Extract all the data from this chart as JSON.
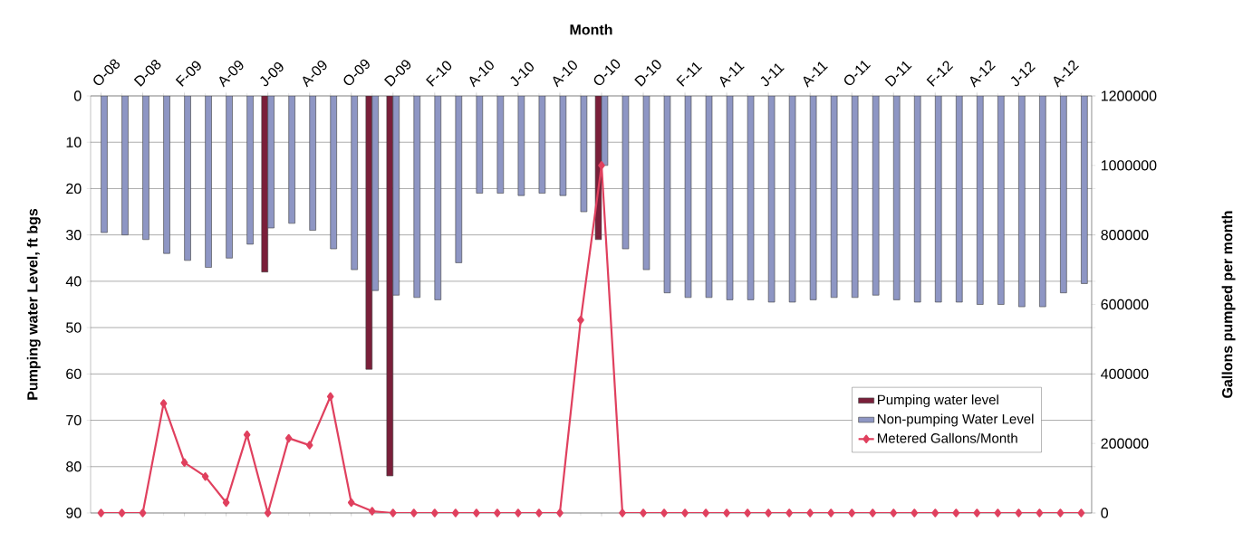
{
  "chart_data": {
    "type": "bar",
    "xlabel": "Month",
    "ylabel": "Pumping water Level, ft bgs",
    "y2label": "Gallons pumped per month",
    "categories": [
      "O-08",
      null,
      "D-08",
      null,
      "F-09",
      null,
      "A-09",
      null,
      "J-09",
      null,
      "A-09",
      null,
      "O-09",
      null,
      "D-09",
      null,
      "F-10",
      null,
      "A-10",
      null,
      "J-10",
      null,
      "A-10",
      null,
      "O-10",
      null,
      "D-10",
      null,
      "F-11",
      null,
      "A-11",
      null,
      "J-11",
      null,
      "A-11",
      null,
      "O-11",
      null,
      "D-11",
      null,
      "F-12",
      null,
      "A-12",
      null,
      "J-12",
      null,
      "A-12",
      null
    ],
    "series": [
      {
        "name": "Pumping water level",
        "color": "#7a1f3a",
        "values": [
          null,
          null,
          null,
          null,
          null,
          null,
          null,
          null,
          38,
          null,
          null,
          null,
          null,
          59,
          82,
          null,
          null,
          null,
          null,
          null,
          null,
          null,
          null,
          null,
          31,
          null,
          null,
          null,
          null,
          null,
          null,
          null,
          null,
          null,
          null,
          null,
          null,
          null,
          null,
          null,
          null,
          null,
          null,
          null,
          null,
          null,
          null,
          null
        ]
      },
      {
        "name": "Non-pumping Water Level",
        "color": "#8e96c4",
        "values": [
          29.5,
          30,
          31,
          34,
          35.5,
          37,
          35,
          32,
          28.5,
          27.5,
          29,
          33,
          37.5,
          42,
          43,
          43.5,
          44,
          36,
          21,
          21,
          21.5,
          21,
          21.5,
          25,
          15,
          33,
          37.5,
          42.5,
          43.5,
          43.5,
          44,
          44,
          44.5,
          44.5,
          44,
          43.5,
          43.5,
          43,
          44,
          44.5,
          44.5,
          44.5,
          45,
          45,
          45.5,
          45.5,
          42.5,
          40.5
        ]
      },
      {
        "name": "Metered Gallons/Month",
        "color": "#e0405e",
        "type": "line",
        "axis": "y2",
        "values": [
          0,
          0,
          0,
          315000,
          145000,
          105000,
          30000,
          225000,
          0,
          215000,
          195000,
          335000,
          30000,
          5000,
          0,
          0,
          0,
          0,
          0,
          0,
          0,
          0,
          0,
          555000,
          1000000,
          0,
          0,
          0,
          0,
          0,
          0,
          0,
          0,
          0,
          0,
          0,
          0,
          0,
          0,
          0,
          0,
          0,
          0,
          0,
          0,
          0,
          0,
          0
        ]
      }
    ],
    "ylim": [
      90,
      0
    ],
    "yticks": [
      0,
      10,
      20,
      30,
      40,
      50,
      60,
      70,
      80,
      90
    ],
    "y2lim": [
      0,
      1200000
    ],
    "y2ticks": [
      0,
      200000,
      400000,
      600000,
      800000,
      1000000,
      1200000
    ],
    "grid": "y",
    "legend": "bottom right",
    "marker": "diamond"
  }
}
